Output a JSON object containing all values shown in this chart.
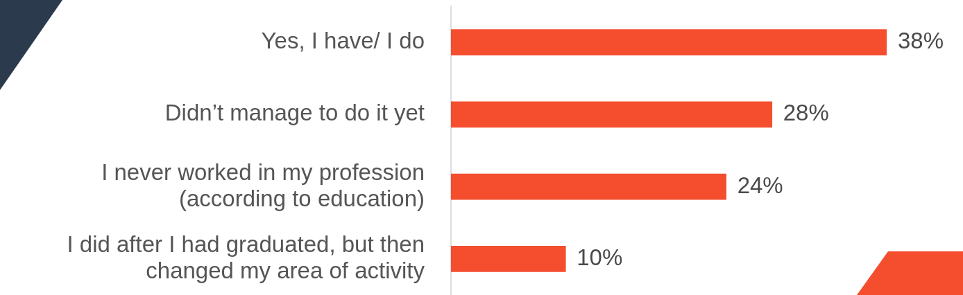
{
  "chart_data": {
    "type": "bar",
    "orientation": "horizontal",
    "categories": [
      "Yes, I have/ I do",
      "Didn’t manage to do it yet",
      "I never worked in my profession (according to education)",
      "I did after I had graduated, but then changed my area of activity"
    ],
    "values": [
      38,
      28,
      24,
      10
    ],
    "value_labels": [
      "38%",
      "28%",
      "24%",
      "10%"
    ],
    "color": "#f44e2f"
  }
}
